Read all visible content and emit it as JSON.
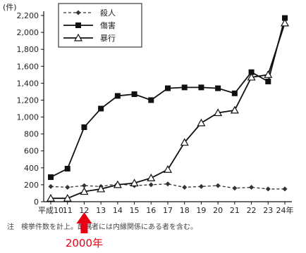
{
  "chart_data": {
    "type": "line",
    "ylabel": "(件)",
    "ylim": [
      0,
      2200
    ],
    "yticks": [
      0,
      200,
      400,
      600,
      800,
      1000,
      1200,
      1400,
      1600,
      1800,
      2000,
      2200
    ],
    "ytick_labels": [
      "0",
      "200",
      "400",
      "600",
      "800",
      "1,000",
      "1,200",
      "1,400",
      "1,600",
      "1,800",
      "2,000",
      "2,200"
    ],
    "x": [
      10,
      11,
      12,
      13,
      14,
      15,
      16,
      17,
      18,
      19,
      20,
      21,
      22,
      23,
      24
    ],
    "xtick_labels": [
      "平成10",
      "11",
      "12",
      "13",
      "14",
      "15",
      "16",
      "17",
      "18",
      "19",
      "20",
      "21",
      "22",
      "23",
      "24年"
    ],
    "series": [
      {
        "name": "殺人",
        "style": "dashed",
        "marker": "diamond",
        "color": "#333333",
        "values": [
          180,
          170,
          190,
          180,
          210,
          190,
          200,
          210,
          170,
          180,
          190,
          160,
          170,
          150,
          150
        ]
      },
      {
        "name": "傷害",
        "style": "solid",
        "marker": "square",
        "color": "#111111",
        "values": [
          290,
          390,
          880,
          1100,
          1250,
          1270,
          1200,
          1340,
          1350,
          1350,
          1340,
          1280,
          1530,
          1420,
          2170
        ]
      },
      {
        "name": "暴行",
        "style": "solid",
        "marker": "triangle",
        "color": "#111111",
        "values": [
          40,
          40,
          120,
          150,
          200,
          220,
          280,
          380,
          700,
          930,
          1050,
          1080,
          1470,
          1500,
          2110
        ]
      }
    ],
    "legend_position": "top-left",
    "grid": false
  },
  "footnote": "注　検挙件数を計上。配偶者には内縁関係にある者を含む。",
  "annotation": {
    "label": "2000年",
    "color": "#e60012"
  }
}
